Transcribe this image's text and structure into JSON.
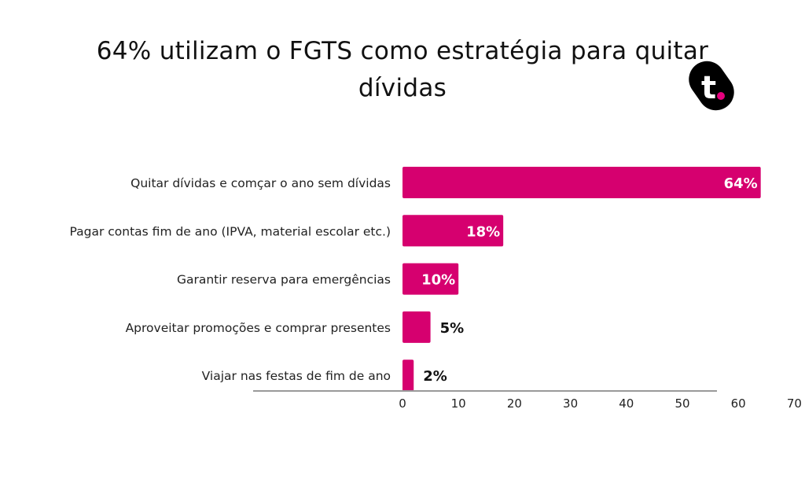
{
  "chart_data": {
    "type": "bar",
    "orientation": "horizontal",
    "title": "64% utilizam o FGTS como estratégia para quitar dívidas",
    "categories": [
      "Quitar dívidas e comçar o ano sem dívidas",
      "Pagar contas fim de ano (IPVA, material escolar etc.)",
      "Garantir reserva para emergências",
      "Aproveitar promoções e comprar presentes",
      "Viajar nas festas de fim de ano"
    ],
    "values": [
      64,
      18,
      10,
      5,
      2
    ],
    "data_labels": [
      "64%",
      "18%",
      "10%",
      "5%",
      "2%"
    ],
    "xlim": [
      0,
      70
    ],
    "xticks": [
      "0",
      "10",
      "20",
      "30",
      "40",
      "50",
      "60",
      "70"
    ],
    "xlabel": "",
    "ylabel": "",
    "grid": false,
    "colors": {
      "bar": "#d6006f",
      "axis": "#9a9a9a",
      "label_inside": "#ffffff",
      "label_outside": "#111111"
    }
  },
  "logo": {
    "text": "t.",
    "colors": {
      "background": "#000000",
      "letter": "#ffffff",
      "dot": "#e5007d"
    }
  }
}
